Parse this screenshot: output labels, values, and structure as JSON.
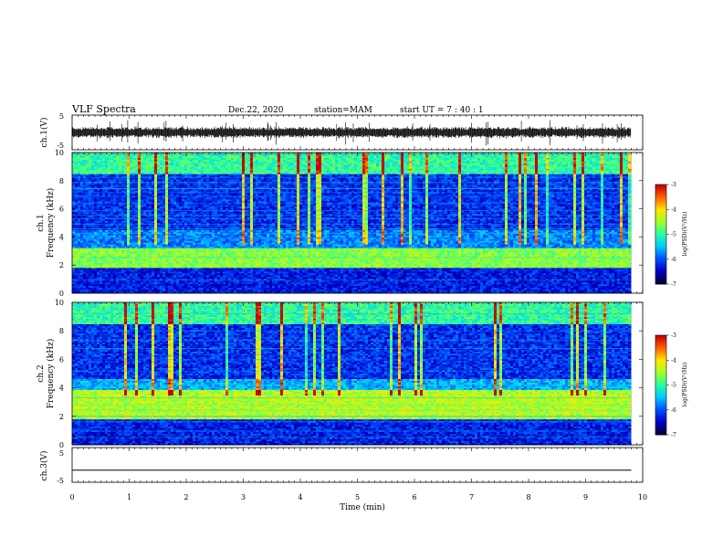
{
  "header": {
    "title": "VLF Spectra",
    "date": "Dec.22, 2020",
    "station": "station=MAM",
    "start": "start  UT  =   7 : 40 : 1"
  },
  "colors": {
    "colormap": [
      "#00003c",
      "#0000c8",
      "#0050ff",
      "#00c8ff",
      "#28ffa0",
      "#a0ff28",
      "#ffe600",
      "#ff6400",
      "#c80000"
    ],
    "trace": "#000000"
  },
  "chart_data": [
    {
      "id": "ch1_waveform",
      "type": "line",
      "ylabel": "ch.1(V)",
      "ylim": [
        -5,
        5
      ],
      "yticks": [
        "5",
        "-5"
      ],
      "xlim": [
        0,
        10
      ],
      "description_values": {
        "baseline": 0,
        "amplitude_typical": 1.5,
        "amplitude_spike": 3
      }
    },
    {
      "id": "ch1_spectrogram",
      "type": "heatmap",
      "ylabel_line1": "ch.1",
      "ylabel_line2": "Frequency (kHz)",
      "ylim": [
        0,
        10
      ],
      "yticks": [
        "0",
        "2",
        "4",
        "6",
        "8",
        "10"
      ],
      "xlim": [
        0,
        9.8
      ],
      "colorbar": {
        "label": "log(PSD)(V²/Hz)",
        "range": [
          -7,
          -3
        ],
        "ticks": [
          "-3",
          "-4",
          "-5",
          "-6",
          "-7"
        ]
      },
      "bands": [
        {
          "freq_range": [
            1.8,
            3.2
          ],
          "level": -4.6
        },
        {
          "freq_range": [
            3.2,
            4.5
          ],
          "level": -5.8
        },
        {
          "freq_range": [
            4.5,
            8.5
          ],
          "level": -6.2
        },
        {
          "freq_range": [
            8.5,
            10
          ],
          "level": -5.0
        },
        {
          "freq_range": [
            0,
            1.8
          ],
          "level": -6.3
        }
      ]
    },
    {
      "id": "ch2_spectrogram",
      "type": "heatmap",
      "ylabel_line1": "ch.2",
      "ylabel_line2": "Frequency (kHz)",
      "ylim": [
        0,
        10
      ],
      "yticks": [
        "0",
        "2",
        "4",
        "6",
        "8",
        "10"
      ],
      "xlim": [
        0,
        9.8
      ],
      "colorbar": {
        "label": "log(PSD)(V²/Hz)",
        "range": [
          -7,
          -3
        ],
        "ticks": [
          "-3",
          "-4",
          "-5",
          "-6",
          "-7"
        ]
      },
      "bands": [
        {
          "freq_range": [
            1.8,
            3.8
          ],
          "level": -4.4
        },
        {
          "freq_range": [
            3.8,
            4.6
          ],
          "level": -5.6
        },
        {
          "freq_range": [
            4.6,
            8.5
          ],
          "level": -6.2
        },
        {
          "freq_range": [
            8.5,
            10
          ],
          "level": -5.0
        },
        {
          "freq_range": [
            0,
            1.8
          ],
          "level": -6.3
        }
      ]
    },
    {
      "id": "ch3_waveform",
      "type": "line",
      "ylabel": "ch.3(V)",
      "ylim": [
        -5,
        5
      ],
      "yticks": [
        "5",
        "-5"
      ],
      "xlim": [
        0,
        10
      ],
      "x": [
        0,
        9.8
      ],
      "y": [
        -1.5,
        -1.5
      ]
    }
  ],
  "xaxis": {
    "label": "Time (min)",
    "ticks": [
      "0",
      "1",
      "2",
      "3",
      "4",
      "5",
      "6",
      "7",
      "8",
      "9",
      "10"
    ]
  }
}
